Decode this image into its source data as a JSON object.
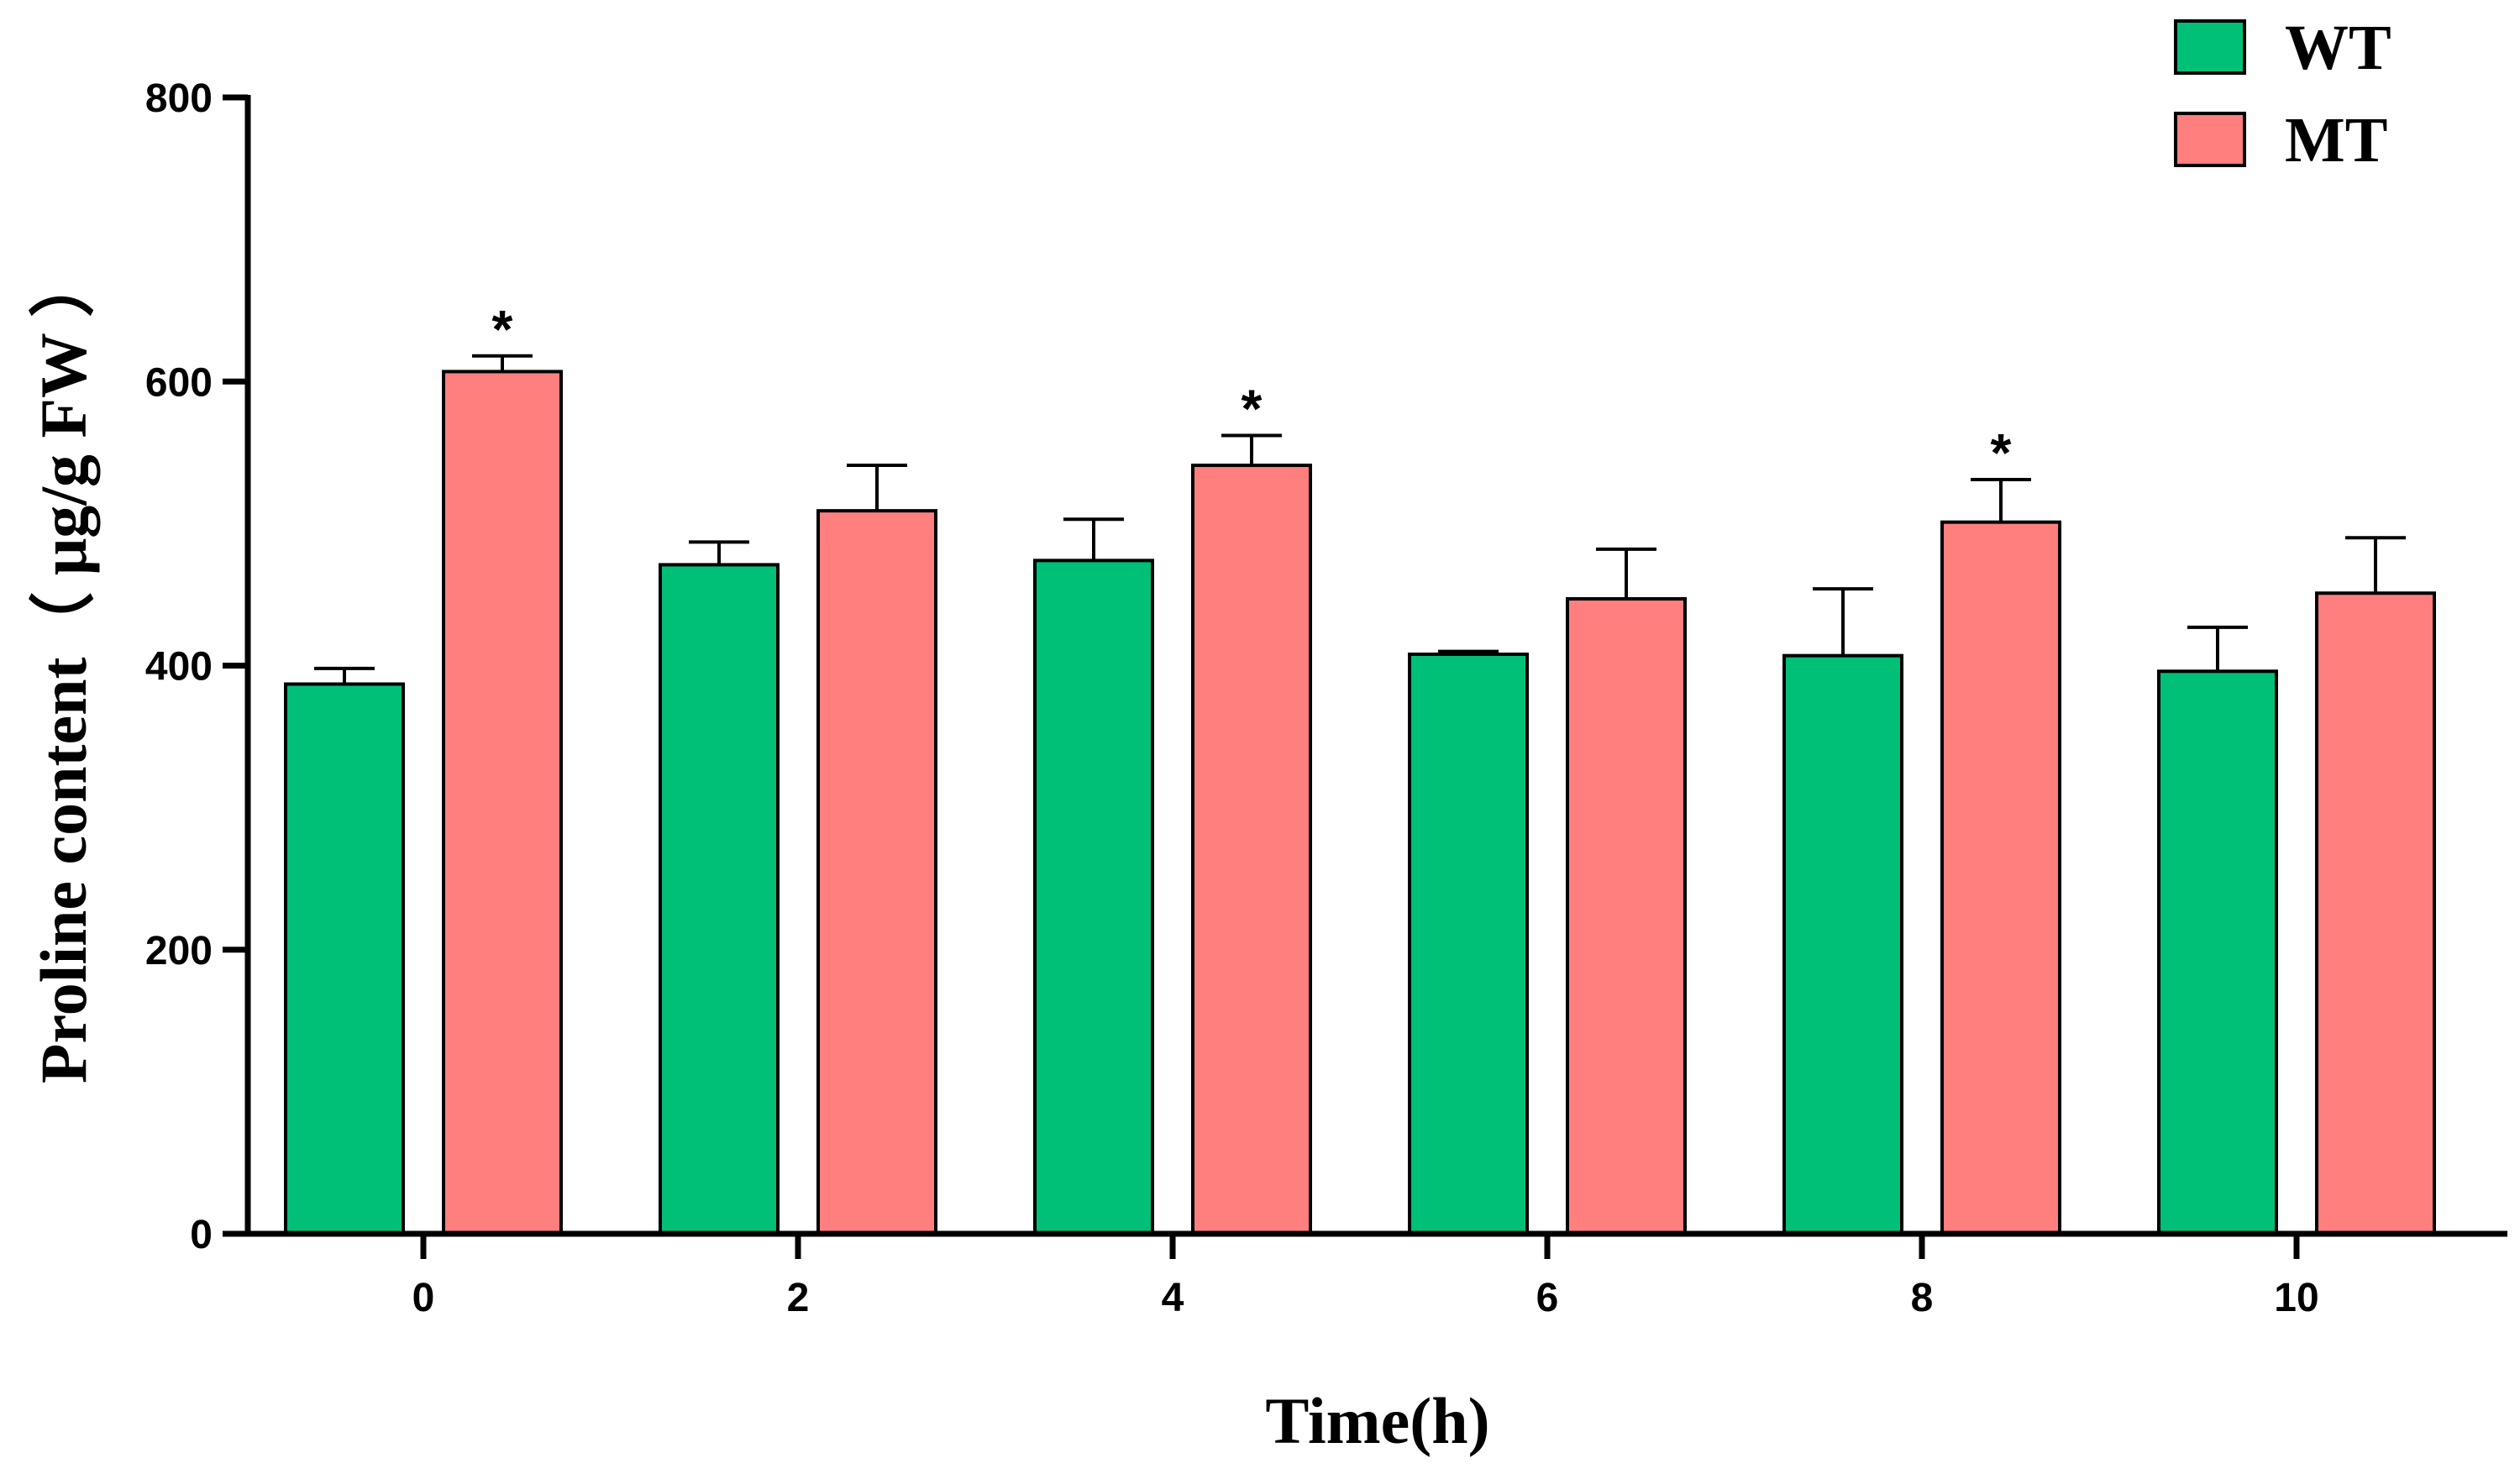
{
  "chart_data": {
    "type": "bar",
    "title": "",
    "xlabel": "Time(h)",
    "ylabel": "Proline content（ μg/g FW ）",
    "ylim": [
      0,
      800
    ],
    "yticks": [
      "0",
      "200",
      "400",
      "600",
      "800"
    ],
    "categories": [
      "0",
      "2",
      "4",
      "6",
      "8",
      "10"
    ],
    "legend_position": "top-right",
    "series": [
      {
        "name": "WT",
        "color": "#00BF77",
        "values": [
          387,
          471,
          474,
          408,
          407,
          396
        ],
        "errors": [
          11,
          16,
          29,
          2,
          47,
          31
        ],
        "significance": [
          "",
          "",
          "",
          "",
          "",
          ""
        ]
      },
      {
        "name": "MT",
        "color": "#FF7F7F",
        "values": [
          607,
          509,
          541,
          447,
          501,
          451
        ],
        "errors": [
          11,
          32,
          21,
          35,
          30,
          39
        ],
        "significance": [
          "*",
          "",
          "*",
          "",
          "*",
          ""
        ]
      }
    ]
  }
}
